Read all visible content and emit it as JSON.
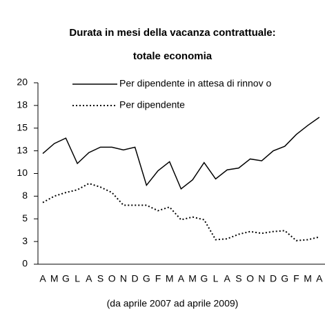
{
  "chart_data": {
    "type": "line",
    "title": [
      "Durata in mesi della vacanza contrattuale:",
      "totale economia"
    ],
    "footnote": "(da aprile 2007 ad aprile 2009)",
    "categories": [
      "A",
      "M",
      "G",
      "L",
      "A",
      "S",
      "O",
      "N",
      "D",
      "G",
      "F",
      "M",
      "A",
      "M",
      "G",
      "L",
      "A",
      "S",
      "O",
      "N",
      "D",
      "G",
      "F",
      "M",
      "A"
    ],
    "series": [
      {
        "name": "Per dipendente in attesa di rinnov o",
        "color": "#000000",
        "style": "solid",
        "values": [
          12.2,
          13.3,
          13.9,
          11.1,
          12.3,
          12.9,
          12.9,
          12.6,
          12.9,
          8.7,
          10.3,
          11.3,
          8.3,
          9.3,
          11.2,
          9.4,
          10.4,
          10.6,
          11.6,
          11.4,
          12.5,
          13.0,
          14.3,
          15.3,
          16.2
        ]
      },
      {
        "name": "Per dipendente",
        "color": "#000000",
        "style": "dotted",
        "values": [
          6.8,
          7.5,
          7.9,
          8.2,
          8.9,
          8.5,
          7.9,
          6.5,
          6.5,
          6.5,
          5.9,
          6.3,
          4.9,
          5.2,
          4.9,
          2.7,
          2.8,
          3.3,
          3.6,
          3.4,
          3.6,
          3.7,
          2.6,
          2.7,
          3.0
        ]
      }
    ],
    "ylim": [
      0,
      20
    ],
    "yticks": [
      0,
      {
        "value": 2.5,
        "label": "3"
      },
      5,
      {
        "value": 7.5,
        "label": "8"
      },
      10,
      {
        "value": 12.5,
        "label": "13"
      },
      15,
      {
        "value": 17.5,
        "label": "18"
      },
      20
    ],
    "grid": false
  }
}
